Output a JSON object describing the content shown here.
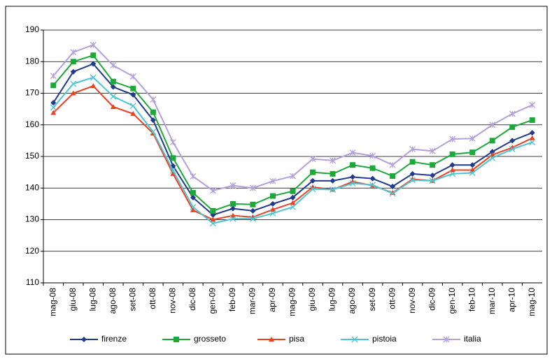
{
  "chart_data": {
    "type": "line",
    "categories": [
      "mag-08",
      "giu-08",
      "lug-08",
      "ago-08",
      "set-08",
      "ott-08",
      "nov-08",
      "dic-08",
      "gen-09",
      "feb-09",
      "mar-09",
      "apr-09",
      "mag-09",
      "giu-09",
      "lug-09",
      "ago-09",
      "set-09",
      "ott-09",
      "nov-09",
      "dic-09",
      "gen-10",
      "feb-10",
      "mar-10",
      "apr-10",
      "mag-10"
    ],
    "series": [
      {
        "name": "firenze",
        "color": "#1f3a8f",
        "marker": "diamond",
        "values": [
          167,
          176.8,
          179.3,
          172,
          169.5,
          161.5,
          147,
          137,
          131.5,
          133.5,
          132.8,
          135,
          137,
          142.3,
          142.3,
          143.5,
          143,
          140.5,
          144.5,
          144,
          147.3,
          147.3,
          151.5,
          155,
          157.5
        ]
      },
      {
        "name": "grosseto",
        "color": "#1da83a",
        "marker": "square",
        "values": [
          172.5,
          180,
          182,
          173.7,
          171.5,
          164,
          149.5,
          138.5,
          132.8,
          135,
          134.8,
          137.5,
          139,
          145,
          144.5,
          147.3,
          146.3,
          143.8,
          148.3,
          147.3,
          150.7,
          151.3,
          155,
          159.3,
          161.5
        ]
      },
      {
        "name": "pisa",
        "color": "#ee4020",
        "marker": "triangle",
        "values": [
          163.8,
          170,
          172.3,
          165.7,
          163.5,
          157.3,
          144.5,
          133,
          130,
          131.3,
          130.8,
          133.2,
          135.3,
          140.3,
          139.5,
          142,
          140.8,
          138.5,
          142.8,
          142.3,
          145.7,
          145.7,
          150.5,
          152.8,
          155.8
        ]
      },
      {
        "name": "pistoia",
        "color": "#4cc4d4",
        "marker": "cross",
        "values": [
          165.5,
          173,
          175,
          169,
          166,
          157.8,
          145.5,
          134,
          128.8,
          130.3,
          130.3,
          132,
          134,
          139.7,
          139.5,
          141.5,
          141,
          138.3,
          142.5,
          142.3,
          144.5,
          144.8,
          149.5,
          152.3,
          154.5
        ]
      },
      {
        "name": "italia",
        "color": "#b3a0dc",
        "marker": "star",
        "values": [
          175.5,
          183,
          185.3,
          178.8,
          175.3,
          168,
          154.5,
          143.7,
          139.2,
          140.8,
          140,
          142.2,
          143.8,
          149.2,
          148.7,
          151.2,
          150.2,
          147.3,
          152.3,
          151.7,
          155.5,
          155.7,
          160,
          163.5,
          166.3
        ]
      }
    ],
    "ylim": [
      110,
      190
    ],
    "yticks": [
      110,
      120,
      130,
      140,
      150,
      160,
      170,
      180,
      190
    ],
    "grid": true,
    "legend": "bottom"
  }
}
